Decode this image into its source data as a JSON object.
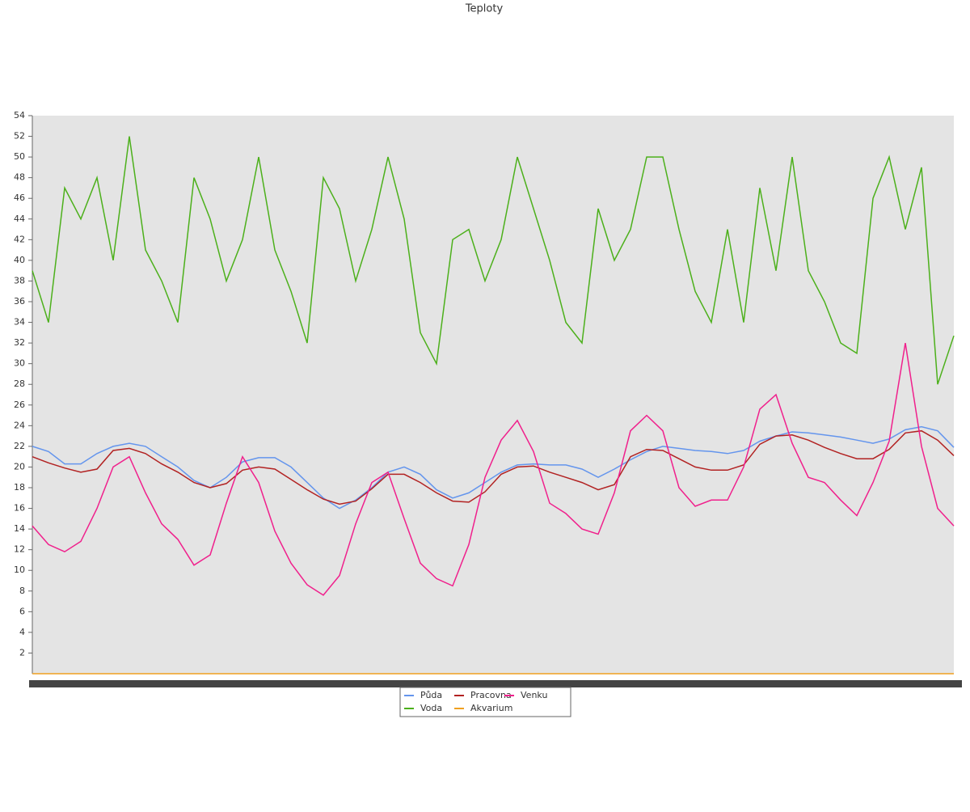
{
  "chart_data": {
    "type": "line",
    "title": "Teploty",
    "categories": [
      null,
      null,
      null,
      null,
      null,
      null,
      null,
      null,
      null,
      null,
      null,
      null,
      null,
      null,
      null,
      null,
      null,
      null,
      null,
      null,
      null,
      null,
      null,
      null,
      null,
      null,
      null,
      null,
      null,
      null,
      null,
      null,
      null,
      null,
      null,
      null,
      null,
      null,
      null,
      null,
      null,
      null,
      null,
      null,
      null,
      null,
      null,
      null,
      null,
      null,
      null,
      null,
      null,
      null,
      null,
      null,
      null,
      null
    ],
    "ylim": [
      0,
      54
    ],
    "yticks": [
      2,
      4,
      6,
      8,
      10,
      12,
      14,
      16,
      18,
      20,
      22,
      24,
      26,
      28,
      30,
      32,
      34,
      36,
      38,
      40,
      42,
      44,
      46,
      48,
      50,
      52,
      54
    ],
    "legend": "bottom",
    "series": [
      {
        "name": "Půda",
        "color": "#6495ed",
        "values": [
          22,
          21.5,
          20.3,
          20.3,
          21.3,
          22,
          22.3,
          22,
          21,
          20,
          18.7,
          18,
          19,
          20.5,
          20.9,
          20.9,
          20,
          18.5,
          17,
          16,
          16.8,
          18,
          19.5,
          20,
          19.3,
          17.8,
          17,
          17.5,
          18.5,
          19.5,
          20.2,
          20.3,
          20.2,
          20.2,
          19.8,
          19,
          19.8,
          20.7,
          21.5,
          22,
          21.8,
          21.6,
          21.5,
          21.3,
          21.6,
          22.5,
          23,
          23.4,
          23.3,
          23.1,
          22.9,
          22.6,
          22.3,
          22.7,
          23.6,
          23.9,
          23.5,
          21.9
        ]
      },
      {
        "name": "Voda",
        "color": "#4cb01b",
        "values": [
          39,
          34,
          47,
          44,
          48,
          40,
          52,
          41,
          38,
          34,
          48,
          44,
          38,
          42,
          50,
          41,
          37,
          32,
          48,
          45,
          38,
          43,
          50,
          44,
          33,
          30,
          42,
          43,
          38,
          42,
          50,
          45,
          40,
          34,
          32,
          45,
          40,
          43,
          50,
          50,
          43,
          37,
          34,
          43,
          34,
          47,
          39,
          50,
          39,
          36,
          32,
          31,
          46,
          50,
          43,
          49,
          28,
          32.7
        ]
      },
      {
        "name": "Pracovna",
        "color": "#b22222",
        "values": [
          21,
          20.4,
          19.9,
          19.5,
          19.8,
          21.6,
          21.8,
          21.3,
          20.3,
          19.5,
          18.5,
          18,
          18.4,
          19.7,
          20,
          19.8,
          18.8,
          17.8,
          16.9,
          16.4,
          16.7,
          17.9,
          19.3,
          19.3,
          18.5,
          17.5,
          16.7,
          16.6,
          17.6,
          19.3,
          20,
          20.1,
          19.5,
          19,
          18.5,
          17.8,
          18.3,
          21,
          21.7,
          21.6,
          20.8,
          20,
          19.7,
          19.7,
          20.2,
          22.2,
          23,
          23.1,
          22.6,
          21.9,
          21.3,
          20.8,
          20.8,
          21.7,
          23.3,
          23.5,
          22.6,
          21.1
        ]
      },
      {
        "name": "Akvarium",
        "color": "#f0a020",
        "values": [
          0,
          0,
          0,
          0,
          0,
          0,
          0,
          0,
          0,
          0,
          0,
          0,
          0,
          0,
          0,
          0,
          0,
          0,
          0,
          0,
          0,
          0,
          0,
          0,
          0,
          0,
          0,
          0,
          0,
          0,
          0,
          0,
          0,
          0,
          0,
          0,
          0,
          0,
          0,
          0,
          0,
          0,
          0,
          0,
          0,
          0,
          0,
          0,
          0,
          0,
          0,
          0,
          0,
          0,
          0,
          0,
          0,
          0
        ]
      },
      {
        "name": "Venku",
        "color": "#f0208c",
        "values": [
          14.3,
          12.5,
          11.8,
          12.8,
          16,
          20,
          21,
          17.5,
          14.5,
          13,
          10.5,
          11.5,
          16.5,
          21,
          18.5,
          13.8,
          10.7,
          8.6,
          7.6,
          9.5,
          14.5,
          18.5,
          19.5,
          15,
          10.7,
          9.2,
          8.5,
          12.5,
          19,
          22.6,
          24.5,
          21.5,
          16.5,
          15.5,
          14,
          13.5,
          17.5,
          23.5,
          25,
          23.5,
          18,
          16.2,
          16.8,
          16.8,
          20,
          25.6,
          27,
          22.3,
          19,
          18.5,
          16.8,
          15.3,
          18.5,
          22.5,
          32,
          22,
          16,
          14.3
        ]
      }
    ]
  }
}
